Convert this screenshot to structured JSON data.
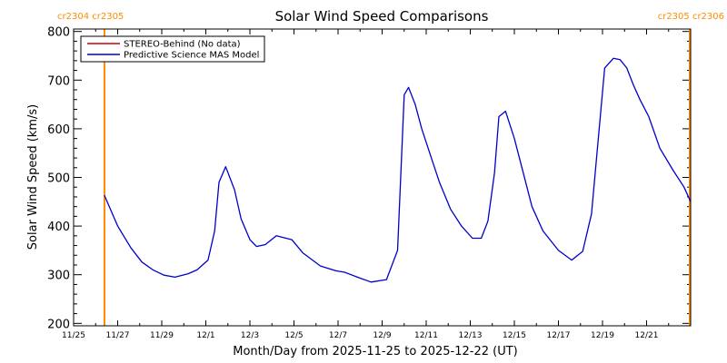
{
  "chart_data": {
    "type": "line",
    "title": "Solar Wind Speed Comparisons",
    "xlabel": "Month/Day from 2025-11-25 to 2025-12-22 (UT)",
    "ylabel": "Solar Wind Speed (km/s)",
    "xlim": [
      0,
      28
    ],
    "ylim": [
      195,
      805
    ],
    "yticks": [
      200,
      300,
      400,
      500,
      600,
      700,
      800
    ],
    "xticks": [
      {
        "x": 0,
        "label": "11/25"
      },
      {
        "x": 2,
        "label": "11/27"
      },
      {
        "x": 4,
        "label": "11/29"
      },
      {
        "x": 6,
        "label": "12/1"
      },
      {
        "x": 8,
        "label": "12/3"
      },
      {
        "x": 10,
        "label": "12/5"
      },
      {
        "x": 12,
        "label": "12/7"
      },
      {
        "x": 14,
        "label": "12/9"
      },
      {
        "x": 16,
        "label": "12/11"
      },
      {
        "x": 18,
        "label": "12/13"
      },
      {
        "x": 20,
        "label": "12/15"
      },
      {
        "x": 22,
        "label": "12/17"
      },
      {
        "x": 24,
        "label": "12/19"
      },
      {
        "x": 26,
        "label": "12/21"
      }
    ],
    "carrington": {
      "left": {
        "x": 1.4,
        "labels": [
          "cr2304",
          "cr2305"
        ]
      },
      "right": {
        "x": 28,
        "labels": [
          "cr2305",
          "cr2306"
        ]
      }
    },
    "colors": {
      "model": "#0000cc",
      "stereo": "#cc0000",
      "carrington": "#ff8c00",
      "text": "#000000"
    },
    "legend": {
      "placement": "top-left",
      "entries": [
        {
          "label": "STEREO-Behind (No data)",
          "color": "#cc0000"
        },
        {
          "label": "Predictive Science MAS Model",
          "color": "#0000cc"
        }
      ]
    },
    "series": [
      {
        "name": "Predictive Science MAS Model",
        "x": [
          1.4,
          2.0,
          2.6,
          3.1,
          3.6,
          4.1,
          4.6,
          5.2,
          5.6,
          6.1,
          6.4,
          6.6,
          6.9,
          7.3,
          7.6,
          8.0,
          8.3,
          8.7,
          9.2,
          9.9,
          10.4,
          11.2,
          11.9,
          12.3,
          13.0,
          13.5,
          14.2,
          14.7,
          15.0,
          15.2,
          15.5,
          15.8,
          16.2,
          16.6,
          17.1,
          17.6,
          18.1,
          18.5,
          18.8,
          19.1,
          19.3,
          19.6,
          20.0,
          20.4,
          20.8,
          21.3,
          22.0,
          22.6,
          23.1,
          23.5,
          24.1,
          24.5,
          24.8,
          25.1,
          25.4,
          25.7,
          26.1,
          26.6,
          27.2,
          27.7,
          28.0
        ],
        "values": [
          463,
          400,
          355,
          326,
          310,
          299,
          295,
          302,
          310,
          330,
          390,
          490,
          522,
          475,
          415,
          372,
          358,
          362,
          380,
          372,
          345,
          318,
          308,
          305,
          293,
          285,
          290,
          350,
          670,
          685,
          650,
          600,
          545,
          490,
          435,
          400,
          375,
          375,
          410,
          510,
          625,
          636,
          580,
          510,
          440,
          390,
          350,
          330,
          348,
          425,
          725,
          745,
          742,
          725,
          690,
          660,
          625,
          560,
          515,
          480,
          450
        ]
      }
    ]
  }
}
